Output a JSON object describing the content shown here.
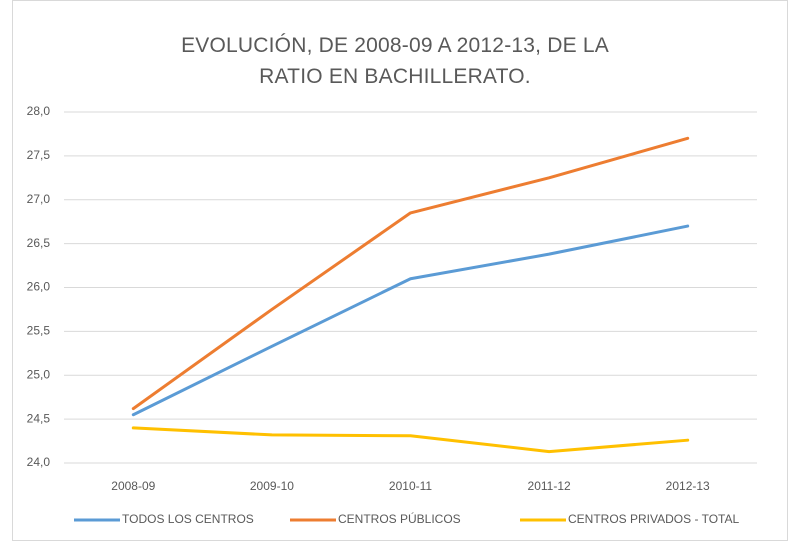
{
  "chart_data": {
    "type": "line",
    "title": "EVOLUCIÓN, DE 2008-09 A 2012-13, DE LA RATIO EN BACHILLERATO.",
    "categories": [
      "2008-09",
      "2009-10",
      "2010-11",
      "2011-12",
      "2012-13"
    ],
    "series": [
      {
        "name": "TODOS LOS CENTROS",
        "color": "#5b9bd5",
        "values": [
          24.55,
          25.33,
          26.1,
          26.38,
          26.7
        ]
      },
      {
        "name": "CENTROS PÚBLICOS",
        "color": "#ed7d31",
        "values": [
          24.62,
          25.75,
          26.85,
          27.25,
          27.7
        ]
      },
      {
        "name": "CENTROS PRIVADOS - TOTAL",
        "color": "#ffc000",
        "values": [
          24.4,
          24.32,
          24.31,
          24.13,
          24.26
        ]
      }
    ],
    "ylim": [
      24,
      28
    ],
    "yticks": [
      {
        "value": 24,
        "label": "24,0"
      },
      {
        "value": 24.5,
        "label": "24,5"
      },
      {
        "value": 25,
        "label": "25,0"
      },
      {
        "value": 25.5,
        "label": "25,5"
      },
      {
        "value": 26,
        "label": "26,0"
      },
      {
        "value": 26.5,
        "label": "26,5"
      },
      {
        "value": 27,
        "label": "27,0"
      },
      {
        "value": 27.5,
        "label": "27,5"
      },
      {
        "value": 28,
        "label": "28,0"
      }
    ],
    "grid": true,
    "legend": "bottom"
  }
}
